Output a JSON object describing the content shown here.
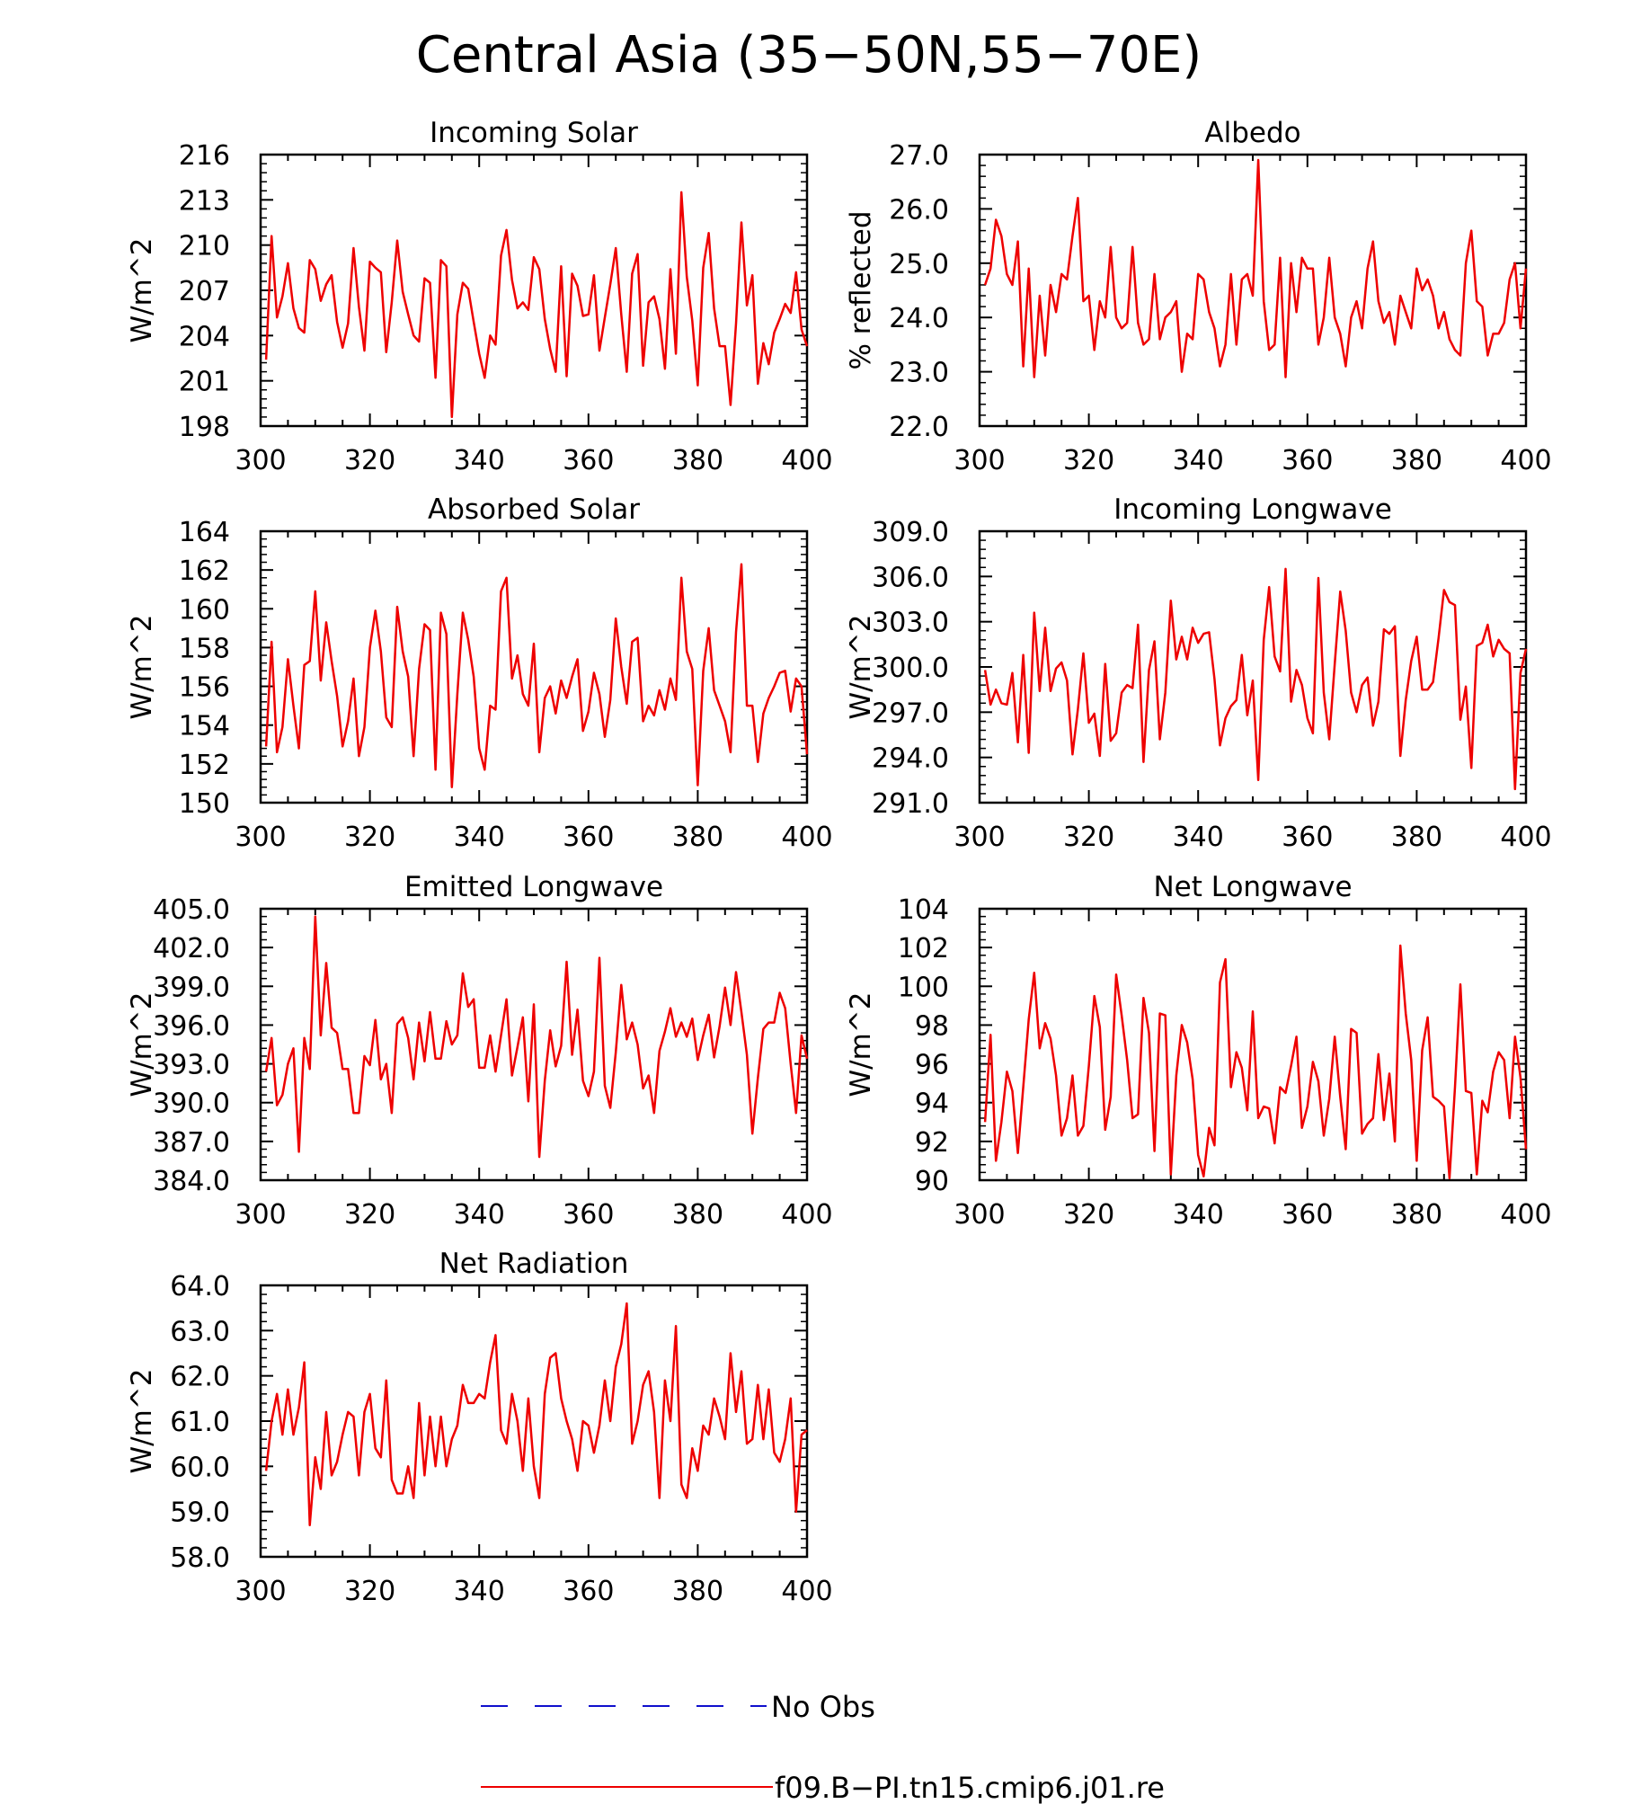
{
  "title": "Central Asia (35−50N,55−70E)",
  "colors": {
    "model": "#ee0000",
    "obs": "#1010cc",
    "axis": "#000000"
  },
  "legend": [
    {
      "label": "No Obs",
      "style": "dashed",
      "color": "#1010cc"
    },
    {
      "label": "f09.B−PI.tn15.cmip6.j01.re",
      "style": "solid",
      "color": "#ee0000"
    }
  ],
  "chart_data": [
    {
      "type": "line",
      "title": "Incoming Solar",
      "ylabel": "W/m^2",
      "xlim": [
        300,
        400
      ],
      "ylim": [
        198,
        216
      ],
      "xticks": [
        300,
        320,
        340,
        360,
        380,
        400
      ],
      "yticks": [
        198,
        201,
        204,
        207,
        210,
        213,
        216
      ],
      "ytick_labels": [
        "198",
        "201",
        "204",
        "207",
        "210",
        "213",
        "216"
      ],
      "x_start": 301,
      "series": [
        {
          "name": "f09.B−PI.tn15.cmip6.j01.re",
          "values": [
            202.4,
            210.6,
            205.2,
            206.6,
            208.8,
            205.8,
            204.5,
            204.2,
            209.0,
            208.4,
            206.3,
            207.4,
            208.0,
            204.9,
            203.2,
            204.8,
            209.8,
            205.9,
            203.0,
            208.9,
            208.5,
            208.2,
            202.9,
            206.2,
            210.3,
            206.9,
            205.4,
            204.0,
            203.6,
            207.8,
            207.5,
            201.2,
            209.0,
            208.6,
            198.6,
            205.4,
            207.5,
            207.1,
            204.9,
            202.8,
            201.2,
            204.0,
            203.4,
            209.3,
            211.0,
            207.7,
            205.8,
            206.2,
            205.7,
            209.2,
            208.4,
            205.1,
            203.1,
            201.6,
            208.6,
            201.3,
            208.1,
            207.3,
            205.3,
            205.4,
            208.0,
            203.0,
            205.2,
            207.4,
            209.8,
            205.4,
            201.6,
            208.1,
            209.4,
            202.0,
            206.2,
            206.6,
            205.1,
            201.8,
            208.4,
            202.8,
            213.5,
            207.9,
            205.0,
            200.7,
            208.5,
            210.8,
            205.8,
            203.3,
            203.3,
            199.4,
            204.8,
            211.5,
            206.0,
            208.0,
            200.8,
            203.5,
            202.1,
            204.2,
            205.1,
            206.1,
            205.5,
            208.2,
            204.4,
            203.3
          ]
        }
      ]
    },
    {
      "type": "line",
      "title": "Albedo",
      "ylabel": "% reflected",
      "xlim": [
        300,
        400
      ],
      "ylim": [
        22.0,
        27.0
      ],
      "xticks": [
        300,
        320,
        340,
        360,
        380,
        400
      ],
      "yticks": [
        22,
        23,
        24,
        25,
        26,
        27
      ],
      "ytick_labels": [
        "22.0",
        "23.0",
        "24.0",
        "25.0",
        "26.0",
        "27.0"
      ],
      "x_start": 301,
      "series": [
        {
          "name": "f09.B−PI.tn15.cmip6.j01.re",
          "values": [
            24.6,
            24.9,
            25.8,
            25.5,
            24.8,
            24.6,
            25.4,
            23.1,
            24.9,
            22.9,
            24.4,
            23.3,
            24.6,
            24.1,
            24.8,
            24.7,
            25.5,
            26.2,
            24.3,
            24.4,
            23.4,
            24.3,
            24.0,
            25.3,
            24.0,
            23.8,
            23.9,
            25.3,
            23.9,
            23.5,
            23.6,
            24.8,
            23.6,
            24.0,
            24.1,
            24.3,
            23.0,
            23.7,
            23.6,
            24.8,
            24.7,
            24.1,
            23.8,
            23.1,
            23.5,
            24.8,
            23.5,
            24.7,
            24.8,
            24.4,
            26.9,
            24.3,
            23.4,
            23.5,
            25.1,
            22.9,
            25.0,
            24.1,
            25.1,
            24.9,
            24.9,
            23.5,
            24.0,
            25.1,
            24.0,
            23.7,
            23.1,
            24.0,
            24.3,
            23.8,
            24.9,
            25.4,
            24.3,
            23.9,
            24.1,
            23.5,
            24.4,
            24.1,
            23.8,
            24.9,
            24.5,
            24.7,
            24.4,
            23.8,
            24.1,
            23.6,
            23.4,
            23.3,
            25.0,
            25.6,
            24.3,
            24.2,
            23.3,
            23.7,
            23.7,
            23.9,
            24.7,
            25.0,
            23.8,
            24.9
          ]
        }
      ]
    },
    {
      "type": "line",
      "title": "Absorbed Solar",
      "ylabel": "W/m^2",
      "xlim": [
        300,
        400
      ],
      "ylim": [
        150,
        164
      ],
      "xticks": [
        300,
        320,
        340,
        360,
        380,
        400
      ],
      "yticks": [
        150,
        152,
        154,
        156,
        158,
        160,
        162,
        164
      ],
      "ytick_labels": [
        "150",
        "152",
        "154",
        "156",
        "158",
        "160",
        "162",
        "164"
      ],
      "x_start": 301,
      "series": [
        {
          "name": "f09.B−PI.tn15.cmip6.j01.re",
          "values": [
            152.9,
            158.3,
            152.6,
            153.9,
            157.4,
            155.0,
            152.8,
            157.1,
            157.3,
            160.9,
            156.3,
            159.3,
            157.3,
            155.5,
            152.9,
            154.2,
            156.4,
            152.4,
            153.9,
            158.0,
            159.9,
            157.8,
            154.4,
            153.9,
            160.1,
            157.8,
            156.5,
            152.4,
            156.9,
            159.2,
            158.9,
            151.7,
            159.8,
            158.7,
            150.8,
            155.6,
            159.8,
            158.4,
            156.5,
            152.8,
            151.7,
            155.0,
            154.8,
            160.9,
            161.6,
            156.4,
            157.6,
            155.6,
            155.0,
            158.2,
            152.6,
            155.4,
            156.0,
            154.6,
            156.3,
            155.4,
            156.5,
            157.4,
            153.7,
            154.7,
            156.7,
            155.6,
            153.4,
            155.3,
            159.5,
            157.0,
            155.1,
            158.3,
            158.5,
            154.2,
            155.0,
            154.5,
            155.8,
            154.8,
            156.4,
            155.3,
            161.6,
            157.8,
            156.9,
            150.9,
            156.8,
            159.0,
            155.8,
            155.0,
            154.2,
            152.6,
            158.8,
            162.3,
            155.0,
            155.0,
            152.1,
            154.6,
            155.4,
            156.0,
            156.7,
            156.8,
            154.7,
            156.4,
            156.0,
            152.5
          ]
        }
      ]
    },
    {
      "type": "line",
      "title": "Incoming Longwave",
      "ylabel": "W/m^2",
      "xlim": [
        300,
        400
      ],
      "ylim": [
        291.0,
        309.0
      ],
      "xticks": [
        300,
        320,
        340,
        360,
        380,
        400
      ],
      "yticks": [
        291,
        294,
        297,
        300,
        303,
        306,
        309
      ],
      "ytick_labels": [
        "291.0",
        "294.0",
        "297.0",
        "300.0",
        "303.0",
        "306.0",
        "309.0"
      ],
      "x_start": 301,
      "series": [
        {
          "name": "f09.B−PI.tn15.cmip6.j01.re",
          "values": [
            299.8,
            297.5,
            298.5,
            297.6,
            297.5,
            299.6,
            295.0,
            300.8,
            294.3,
            303.6,
            298.4,
            302.6,
            298.4,
            299.9,
            300.3,
            299.1,
            294.2,
            297.2,
            300.9,
            296.3,
            296.9,
            294.1,
            300.2,
            295.1,
            295.6,
            298.3,
            298.8,
            298.6,
            302.8,
            293.7,
            299.8,
            301.7,
            295.2,
            298.3,
            304.4,
            300.5,
            302.0,
            300.5,
            302.6,
            301.6,
            302.2,
            302.3,
            299.2,
            294.8,
            296.6,
            297.4,
            297.8,
            300.8,
            296.8,
            299.1,
            292.5,
            301.8,
            305.3,
            300.7,
            299.7,
            306.5,
            297.7,
            299.8,
            298.8,
            296.6,
            295.6,
            305.9,
            298.3,
            295.2,
            300.2,
            305.0,
            302.4,
            298.3,
            297.0,
            298.8,
            299.3,
            296.1,
            297.7,
            302.5,
            302.2,
            302.7,
            294.1,
            297.8,
            300.4,
            302.0,
            298.5,
            298.5,
            299.0,
            301.9,
            305.1,
            304.3,
            304.1,
            296.5,
            298.7,
            293.3,
            301.4,
            301.6,
            302.8,
            300.7,
            301.8,
            301.2,
            300.9,
            291.9,
            299.6,
            301.2
          ]
        }
      ]
    },
    {
      "type": "line",
      "title": "Emitted Longwave",
      "ylabel": "W/m^2",
      "xlim": [
        300,
        400
      ],
      "ylim": [
        384.0,
        405.0
      ],
      "xticks": [
        300,
        320,
        340,
        360,
        380,
        400
      ],
      "yticks": [
        384,
        387,
        390,
        393,
        396,
        399,
        402,
        405
      ],
      "ytick_labels": [
        "384.0",
        "387.0",
        "390.0",
        "393.0",
        "396.0",
        "399.0",
        "402.0",
        "405.0"
      ],
      "x_start": 301,
      "series": [
        {
          "name": "f09.B−PI.tn15.cmip6.j01.re",
          "values": [
            392.4,
            395.0,
            389.8,
            390.6,
            393.0,
            394.2,
            386.2,
            395.0,
            392.6,
            404.4,
            395.2,
            400.8,
            395.8,
            395.4,
            392.6,
            392.6,
            389.2,
            389.2,
            393.6,
            392.9,
            396.4,
            391.8,
            393.0,
            389.2,
            396.1,
            396.6,
            395.0,
            391.8,
            396.2,
            393.2,
            397.0,
            393.4,
            393.4,
            396.3,
            394.5,
            395.2,
            400.0,
            397.4,
            398.0,
            392.7,
            392.7,
            395.2,
            392.4,
            395.2,
            398.0,
            392.1,
            394.3,
            396.6,
            390.1,
            397.6,
            385.8,
            391.7,
            395.6,
            392.8,
            394.4,
            400.9,
            393.7,
            397.2,
            391.7,
            390.5,
            392.4,
            401.2,
            391.3,
            389.6,
            393.9,
            399.1,
            394.9,
            396.2,
            394.5,
            391.1,
            392.1,
            389.2,
            394.0,
            395.5,
            397.3,
            395.1,
            396.2,
            395.1,
            396.5,
            393.3,
            395.2,
            396.8,
            393.5,
            395.9,
            398.9,
            396.0,
            400.1,
            397.0,
            393.7,
            387.6,
            391.9,
            395.7,
            396.2,
            396.2,
            398.5,
            397.3,
            393.0,
            389.2,
            395.2,
            393.4
          ]
        }
      ]
    },
    {
      "type": "line",
      "title": "Net Longwave",
      "ylabel": "W/m^2",
      "xlim": [
        300,
        400
      ],
      "ylim": [
        90,
        104
      ],
      "xticks": [
        300,
        320,
        340,
        360,
        380,
        400
      ],
      "yticks": [
        90,
        92,
        94,
        96,
        98,
        100,
        102,
        104
      ],
      "ytick_labels": [
        "90",
        "92",
        "94",
        "96",
        "98",
        "100",
        "102",
        "104"
      ],
      "x_start": 301,
      "series": [
        {
          "name": "f09.B−PI.tn15.cmip6.j01.re",
          "values": [
            93.0,
            97.5,
            91.0,
            93.0,
            95.6,
            94.6,
            91.4,
            94.8,
            98.3,
            100.7,
            96.8,
            98.1,
            97.3,
            95.4,
            92.3,
            93.2,
            95.4,
            92.3,
            92.8,
            95.9,
            99.5,
            97.9,
            92.6,
            94.3,
            100.6,
            98.5,
            96.2,
            93.2,
            93.4,
            99.4,
            97.6,
            91.5,
            98.6,
            98.5,
            90.3,
            95.4,
            98.0,
            97.1,
            95.2,
            91.3,
            90.2,
            92.7,
            91.8,
            100.2,
            101.4,
            94.8,
            96.6,
            95.8,
            93.6,
            98.7,
            93.2,
            93.8,
            93.7,
            91.9,
            94.8,
            94.5,
            95.9,
            97.4,
            92.7,
            93.8,
            96.1,
            95.1,
            92.3,
            94.2,
            97.4,
            94.3,
            91.6,
            97.8,
            97.6,
            92.4,
            92.9,
            93.2,
            96.5,
            93.1,
            95.5,
            92.0,
            102.1,
            98.6,
            96.2,
            91.0,
            96.7,
            98.4,
            94.3,
            94.1,
            93.8,
            90.1,
            94.8,
            100.1,
            94.6,
            94.5,
            90.3,
            94.1,
            93.5,
            95.6,
            96.6,
            96.2,
            93.2,
            97.4,
            95.3,
            91.6
          ]
        }
      ]
    },
    {
      "type": "line",
      "title": "Net Radiation",
      "ylabel": "W/m^2",
      "xlim": [
        300,
        400
      ],
      "ylim": [
        58.0,
        64.0
      ],
      "xticks": [
        300,
        320,
        340,
        360,
        380,
        400
      ],
      "yticks": [
        58,
        59,
        60,
        61,
        62,
        63,
        64
      ],
      "ytick_labels": [
        "58.0",
        "59.0",
        "60.0",
        "61.0",
        "62.0",
        "63.0",
        "64.0"
      ],
      "x_start": 301,
      "series": [
        {
          "name": "f09.B−PI.tn15.cmip6.j01.re",
          "values": [
            59.9,
            61.0,
            61.6,
            60.7,
            61.7,
            60.7,
            61.3,
            62.3,
            58.7,
            60.2,
            59.5,
            61.2,
            59.8,
            60.1,
            60.7,
            61.2,
            61.1,
            59.8,
            61.2,
            61.6,
            60.4,
            60.2,
            61.9,
            59.7,
            59.4,
            59.4,
            60.0,
            59.3,
            61.4,
            59.8,
            61.1,
            60.0,
            61.1,
            60.0,
            60.6,
            60.9,
            61.8,
            61.4,
            61.4,
            61.6,
            61.5,
            62.3,
            62.9,
            60.8,
            60.5,
            61.6,
            61.0,
            59.9,
            61.5,
            60.0,
            59.3,
            61.6,
            62.4,
            62.5,
            61.5,
            61.0,
            60.6,
            59.9,
            61.0,
            60.9,
            60.3,
            60.9,
            61.9,
            61.0,
            62.2,
            62.7,
            63.6,
            60.5,
            61.0,
            61.8,
            62.1,
            61.2,
            59.3,
            61.9,
            61.0,
            63.1,
            59.6,
            59.3,
            60.4,
            59.9,
            60.9,
            60.7,
            61.5,
            61.1,
            60.6,
            62.5,
            61.2,
            62.1,
            60.5,
            60.6,
            61.8,
            60.6,
            61.7,
            60.3,
            60.1,
            60.6,
            61.5,
            59.0,
            60.7,
            60.8
          ]
        }
      ]
    }
  ]
}
